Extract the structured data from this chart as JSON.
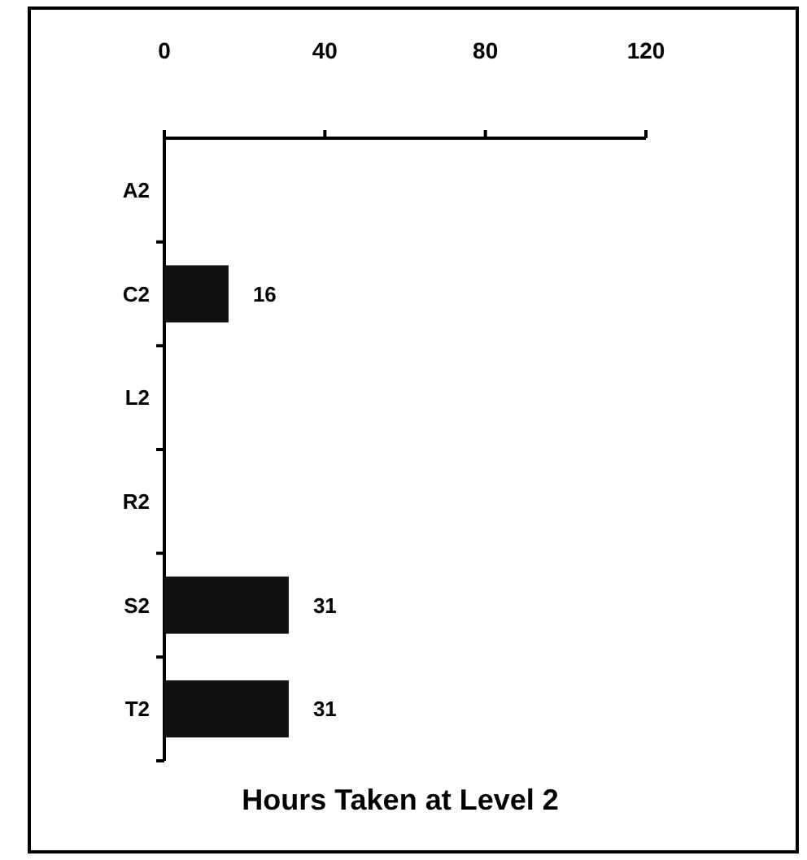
{
  "chart_data": {
    "type": "bar",
    "orientation": "horizontal",
    "title": "Hours Taken at Level 2",
    "categories": [
      "A2",
      "C2",
      "L2",
      "R2",
      "S2",
      "T2"
    ],
    "values": [
      null,
      16,
      null,
      null,
      31,
      31
    ],
    "value_labels": [
      null,
      "16",
      null,
      null,
      "31",
      "31"
    ],
    "color": "#111111",
    "xlim": [
      0,
      120
    ],
    "xticks": [
      0,
      40,
      80,
      120
    ]
  }
}
